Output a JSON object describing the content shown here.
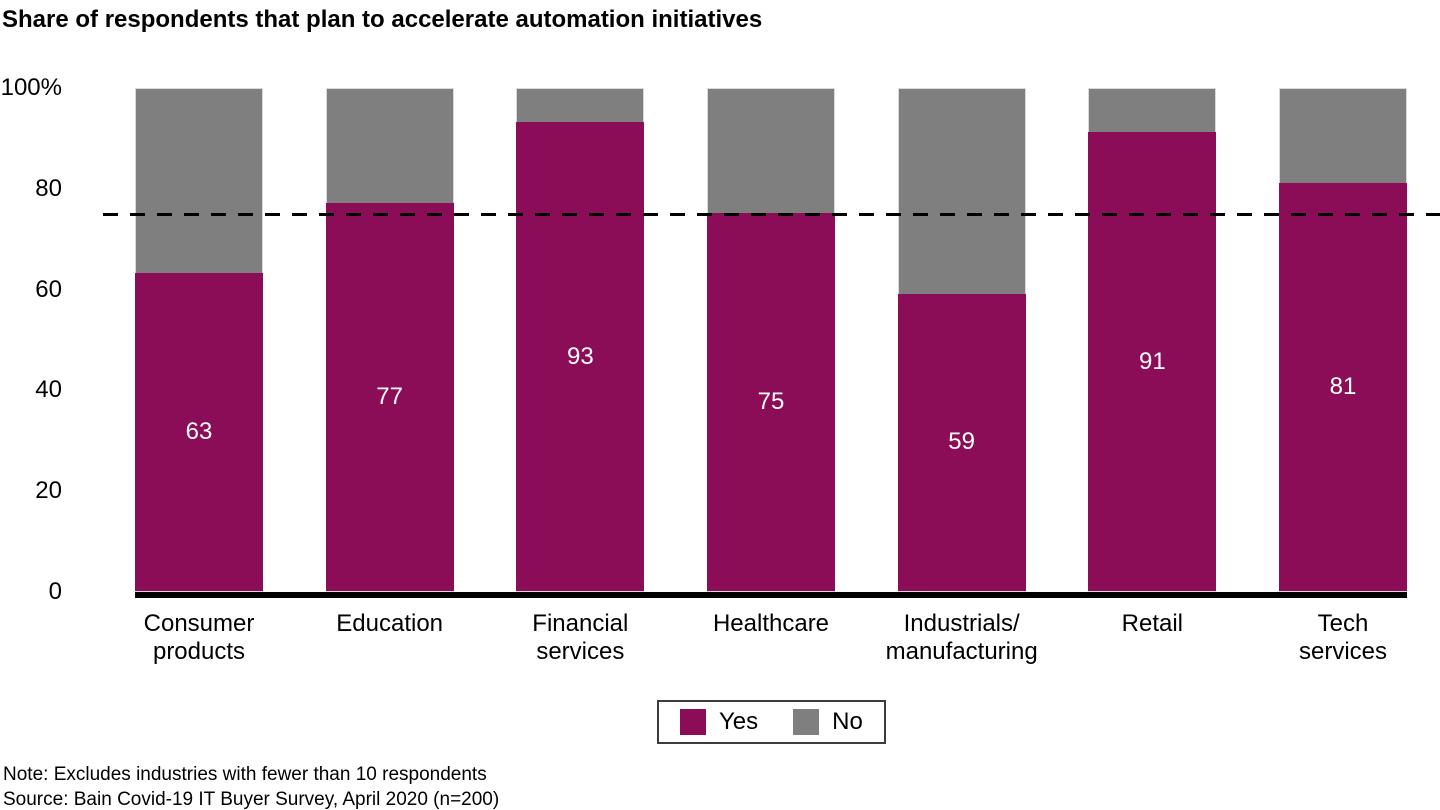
{
  "title": "Share of respondents that plan to accelerate automation initiatives",
  "chart_data": {
    "type": "bar",
    "stacked": true,
    "title": "Share of respondents that plan to accelerate automation initiatives",
    "categories": [
      "Consumer products",
      "Education",
      "Financial services",
      "Healthcare",
      "Industrials/manufacturing",
      "Retail",
      "Tech services"
    ],
    "category_label_lines": [
      [
        "Consumer",
        "products"
      ],
      [
        "Education"
      ],
      [
        "Financial",
        "services"
      ],
      [
        "Healthcare"
      ],
      [
        "Industrials/",
        "manufacturing"
      ],
      [
        "Retail"
      ],
      [
        "Tech",
        "services"
      ]
    ],
    "series": [
      {
        "name": "Yes",
        "color": "#8B0D58",
        "values": [
          63,
          77,
          93,
          75,
          59,
          91,
          81
        ]
      },
      {
        "name": "No",
        "color": "#7F7F7F",
        "values": [
          37,
          23,
          7,
          25,
          41,
          9,
          19
        ]
      }
    ],
    "value_labels": {
      "series": "Yes",
      "color": "#FFFFFF"
    },
    "ylim": [
      0,
      100
    ],
    "yticks": [
      {
        "label": "100%",
        "value": 100
      },
      {
        "label": "80",
        "value": 80
      },
      {
        "label": "60",
        "value": 60
      },
      {
        "label": "40",
        "value": 40
      },
      {
        "label": "20",
        "value": 20
      },
      {
        "label": "0",
        "value": 0
      }
    ],
    "reference_line": {
      "style": "dashed",
      "color": "#000000",
      "value": 75
    },
    "grid": false,
    "legend_position": "bottom-center"
  },
  "legend": {
    "items": [
      {
        "label": "Yes",
        "color": "#8B0D58"
      },
      {
        "label": "No",
        "color": "#7F7F7F"
      }
    ]
  },
  "footnotes": {
    "note": "Note: Excludes industries with fewer than 10 respondents",
    "source": "Source: Bain Covid-19 IT Buyer Survey, April 2020 (n=200)"
  },
  "colors": {
    "yes": "#8B0D58",
    "no": "#7F7F7F",
    "axis": "#000000",
    "background": "#FFFFFF"
  }
}
